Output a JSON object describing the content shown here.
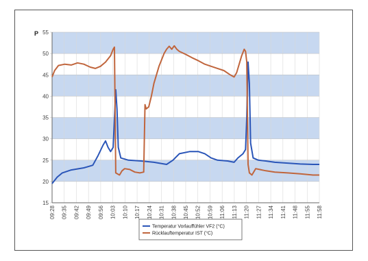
{
  "chart_data": {
    "type": "line",
    "title": "",
    "xlabel": "",
    "ylabel": "P",
    "ylim": [
      15,
      55
    ],
    "y_ticks": [
      "15",
      "20",
      "25",
      "30",
      "35",
      "40",
      "45",
      "50",
      "55"
    ],
    "x_tick_labels": [
      "09:28",
      "09:35",
      "09:42",
      "09:49",
      "09:56",
      "10:03",
      "10:10",
      "10:17",
      "10:24",
      "10:31",
      "10:38",
      "10:45",
      "10:52",
      "10:59",
      "11:06",
      "11:13",
      "11:20",
      "11:27",
      "11:34",
      "11:41",
      "11:48",
      "11:55",
      "11:58"
    ],
    "x_range_minutes": [
      0,
      210
    ],
    "grid": true,
    "band_fill": true,
    "legend_placement": "bottom-center",
    "series": [
      {
        "name": "Temperatur Vorlauffühler VF2 (°C)",
        "color": "#2a55b8",
        "points": [
          [
            0,
            19.5
          ],
          [
            4,
            21
          ],
          [
            8,
            22
          ],
          [
            15,
            22.7
          ],
          [
            25,
            23.2
          ],
          [
            32,
            23.8
          ],
          [
            36,
            26
          ],
          [
            40,
            28.5
          ],
          [
            42,
            29.5
          ],
          [
            44,
            28
          ],
          [
            46,
            27
          ],
          [
            48,
            28
          ],
          [
            50,
            41.5
          ],
          [
            51,
            37
          ],
          [
            52,
            28
          ],
          [
            54,
            25.5
          ],
          [
            60,
            25
          ],
          [
            70,
            24.8
          ],
          [
            80,
            24.5
          ],
          [
            90,
            24
          ],
          [
            95,
            25
          ],
          [
            100,
            26.5
          ],
          [
            108,
            27
          ],
          [
            115,
            27
          ],
          [
            120,
            26.5
          ],
          [
            125,
            25.5
          ],
          [
            130,
            25
          ],
          [
            138,
            24.8
          ],
          [
            143,
            24.5
          ],
          [
            146,
            25.5
          ],
          [
            150,
            26.5
          ],
          [
            152,
            27.5
          ],
          [
            153,
            35
          ],
          [
            154,
            48
          ],
          [
            155,
            43
          ],
          [
            156,
            29
          ],
          [
            158,
            25.5
          ],
          [
            162,
            25
          ],
          [
            168,
            24.8
          ],
          [
            175,
            24.5
          ],
          [
            185,
            24.3
          ],
          [
            195,
            24.1
          ],
          [
            205,
            24
          ],
          [
            210,
            24
          ]
        ]
      },
      {
        "name": "Rücklauftemperatur IST (°C)",
        "color": "#c0653c",
        "points": [
          [
            0,
            44.5
          ],
          [
            2,
            46
          ],
          [
            5,
            47.2
          ],
          [
            10,
            47.5
          ],
          [
            15,
            47.3
          ],
          [
            20,
            47.8
          ],
          [
            25,
            47.5
          ],
          [
            30,
            46.8
          ],
          [
            34,
            46.5
          ],
          [
            38,
            47
          ],
          [
            42,
            48
          ],
          [
            46,
            49.5
          ],
          [
            48,
            51
          ],
          [
            49,
            51.5
          ],
          [
            50,
            22
          ],
          [
            53,
            21.5
          ],
          [
            55,
            22.5
          ],
          [
            57,
            23
          ],
          [
            61,
            22.8
          ],
          [
            65,
            22.2
          ],
          [
            69,
            22
          ],
          [
            72,
            22.2
          ],
          [
            73,
            38
          ],
          [
            74,
            37
          ],
          [
            76,
            37.5
          ],
          [
            78,
            40
          ],
          [
            80,
            43
          ],
          [
            82,
            45
          ],
          [
            84,
            47
          ],
          [
            86,
            48.5
          ],
          [
            88,
            50
          ],
          [
            90,
            51
          ],
          [
            92,
            51.7
          ],
          [
            94,
            51
          ],
          [
            96,
            51.8
          ],
          [
            98,
            51
          ],
          [
            100,
            50.5
          ],
          [
            105,
            49.8
          ],
          [
            110,
            49
          ],
          [
            115,
            48.3
          ],
          [
            120,
            47.5
          ],
          [
            125,
            47
          ],
          [
            130,
            46.5
          ],
          [
            135,
            46
          ],
          [
            140,
            45
          ],
          [
            143,
            44.5
          ],
          [
            145,
            45.5
          ],
          [
            147,
            47.5
          ],
          [
            149,
            49.5
          ],
          [
            151,
            51
          ],
          [
            152,
            50.5
          ],
          [
            153,
            48
          ],
          [
            154,
            24
          ],
          [
            155,
            22
          ],
          [
            157,
            21.5
          ],
          [
            160,
            23
          ],
          [
            163,
            22.8
          ],
          [
            168,
            22.5
          ],
          [
            175,
            22.2
          ],
          [
            185,
            22
          ],
          [
            195,
            21.8
          ],
          [
            205,
            21.5
          ],
          [
            210,
            21.5
          ]
        ]
      }
    ]
  }
}
